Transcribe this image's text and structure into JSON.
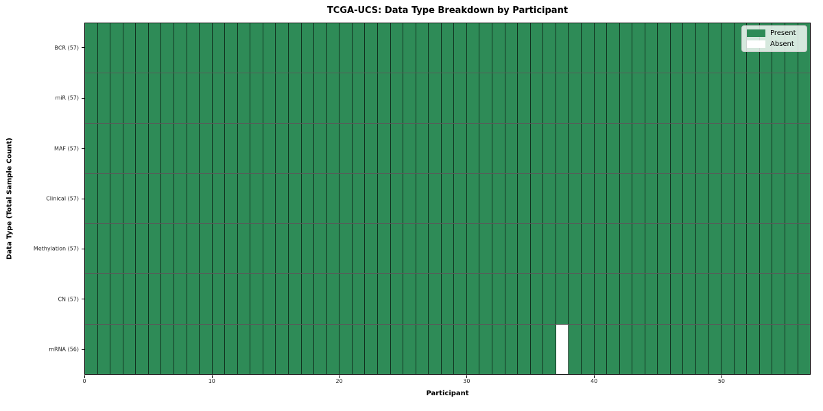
{
  "figure": {
    "background": "#ffffff"
  },
  "chart_data": {
    "type": "heatmap",
    "title": "TCGA-UCS: Data Type Breakdown by Participant",
    "xlabel": "Participant",
    "ylabel": "Data Type (Total Sample Count)",
    "n_participants": 57,
    "x_range": [
      0,
      57
    ],
    "x_ticks": [
      0,
      10,
      20,
      30,
      40,
      50
    ],
    "grid": "cell-borders",
    "legend_position": "upper right",
    "legend": [
      {
        "label": "Present",
        "color": "#2e8b57"
      },
      {
        "label": "Absent",
        "color": "#ffffff"
      }
    ],
    "rows": [
      {
        "data_type": "BCR",
        "label": "BCR (57)",
        "total_samples": 57,
        "absent_participants": []
      },
      {
        "data_type": "miR",
        "label": "miR (57)",
        "total_samples": 57,
        "absent_participants": []
      },
      {
        "data_type": "MAF",
        "label": "MAF (57)",
        "total_samples": 57,
        "absent_participants": []
      },
      {
        "data_type": "Clinical",
        "label": "Clinical (57)",
        "total_samples": 57,
        "absent_participants": []
      },
      {
        "data_type": "Methylation",
        "label": "Methylation (57)",
        "total_samples": 57,
        "absent_participants": []
      },
      {
        "data_type": "CN",
        "label": "CN (57)",
        "total_samples": 57,
        "absent_participants": []
      },
      {
        "data_type": "mRNA",
        "label": "mRNA (56)",
        "total_samples": 56,
        "absent_participants": [
          37
        ]
      }
    ],
    "colors": {
      "present": "#2e8b57",
      "absent": "#ffffff",
      "cell_border": "rgba(0,0,0,0.65)",
      "spine": "#000000",
      "tick_label": "#262626"
    }
  }
}
